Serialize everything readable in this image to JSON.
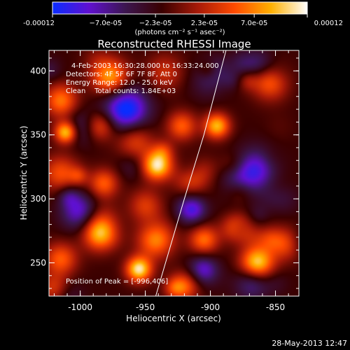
{
  "chart_data": {
    "type": "heatmap",
    "title": "Reconstructed RHESSI Image",
    "xlabel": "Heliocentric X (arcsec)",
    "ylabel": "Heliocentric Y (arcsec)",
    "x_range": [
      -1024,
      -832
    ],
    "y_range": [
      224,
      416
    ],
    "x_ticks": [
      -1000,
      -950,
      -900,
      -850
    ],
    "x_tick_labels": [
      "-1000",
      "-950",
      "-900",
      "-850"
    ],
    "y_ticks": [
      250,
      300,
      350,
      400
    ],
    "y_tick_labels": [
      "250",
      "300",
      "350",
      "400"
    ],
    "colorbar": {
      "range": [
        -0.00012,
        0.00012
      ],
      "ticks": [
        -0.00012,
        -7e-05,
        -2.3e-05,
        2.3e-05,
        7e-05,
        0.00012
      ],
      "tick_labels": [
        "-0.00012",
        "−7.0e-05",
        "−2.3e-05",
        "2.3e-05",
        "7.0e-05",
        "0.00012"
      ],
      "unit_label": "(photons cm⁻² s⁻¹ asec⁻²)",
      "colors": [
        "#0a2cff",
        "#6010d0",
        "#3c1650",
        "#3a0000",
        "#a81a08",
        "#ff4a00",
        "#ffb000",
        "#ffffff"
      ]
    },
    "annotations": [
      "4-Feb-2003 16:30:28.000 to 16:33:24.000",
      "Detectors: 4F 5F 6F 7F 8F, Att 0",
      "Energy Range: 12.0 - 25.0 keV",
      "Clean    Total counts: 1.84E+03"
    ],
    "peak_label": "Position of Peak = [-996,406]",
    "limb": [
      [
        -942,
        224
      ],
      [
        -920,
        300
      ],
      [
        -905,
        350
      ],
      [
        -888,
        416
      ]
    ],
    "blobs": [
      {
        "x": -977,
        "y": 395,
        "s": 10,
        "v": 0.75
      },
      {
        "x": -935,
        "y": 399,
        "s": 10,
        "v": 0.35
      },
      {
        "x": -965,
        "y": 370,
        "s": 12,
        "v": -0.85
      },
      {
        "x": -1015,
        "y": 378,
        "s": 9,
        "v": 0.5
      },
      {
        "x": -1011,
        "y": 352,
        "s": 6,
        "v": 0.9
      },
      {
        "x": -985,
        "y": 357,
        "s": 8,
        "v": 0.55
      },
      {
        "x": -922,
        "y": 357,
        "s": 8,
        "v": 0.55
      },
      {
        "x": -895,
        "y": 357,
        "s": 7,
        "v": 0.8
      },
      {
        "x": -862,
        "y": 405,
        "s": 8,
        "v": -0.35
      },
      {
        "x": -866,
        "y": 322,
        "s": 12,
        "v": -0.65
      },
      {
        "x": -958,
        "y": 345,
        "s": 10,
        "v": 0.45
      },
      {
        "x": -941,
        "y": 326,
        "s": 8,
        "v": 0.95
      },
      {
        "x": -915,
        "y": 316,
        "s": 9,
        "v": 0.5
      },
      {
        "x": -1015,
        "y": 320,
        "s": 10,
        "v": 0.5
      },
      {
        "x": -982,
        "y": 312,
        "s": 8,
        "v": 0.55
      },
      {
        "x": -1000,
        "y": 290,
        "s": 10,
        "v": -0.6
      },
      {
        "x": -950,
        "y": 295,
        "s": 9,
        "v": 0.4
      },
      {
        "x": -915,
        "y": 292,
        "s": 8,
        "v": -0.55
      },
      {
        "x": -985,
        "y": 272,
        "s": 9,
        "v": 0.7
      },
      {
        "x": -942,
        "y": 268,
        "s": 10,
        "v": 0.65
      },
      {
        "x": -905,
        "y": 268,
        "s": 8,
        "v": 0.6
      },
      {
        "x": -880,
        "y": 278,
        "s": 8,
        "v": 0.55
      },
      {
        "x": -841,
        "y": 265,
        "s": 9,
        "v": 0.55
      },
      {
        "x": -1015,
        "y": 253,
        "s": 9,
        "v": 0.55
      },
      {
        "x": -955,
        "y": 245,
        "s": 7,
        "v": 0.95
      },
      {
        "x": -864,
        "y": 250,
        "s": 9,
        "v": 0.9
      },
      {
        "x": -905,
        "y": 245,
        "s": 8,
        "v": -0.55
      },
      {
        "x": -868,
        "y": 234,
        "s": 9,
        "v": -0.4
      },
      {
        "x": -920,
        "y": 232,
        "s": 8,
        "v": 0.55
      },
      {
        "x": -1020,
        "y": 230,
        "s": 8,
        "v": 0.4
      }
    ]
  },
  "footer": {
    "timestamp": "28-May-2013 12:47"
  }
}
